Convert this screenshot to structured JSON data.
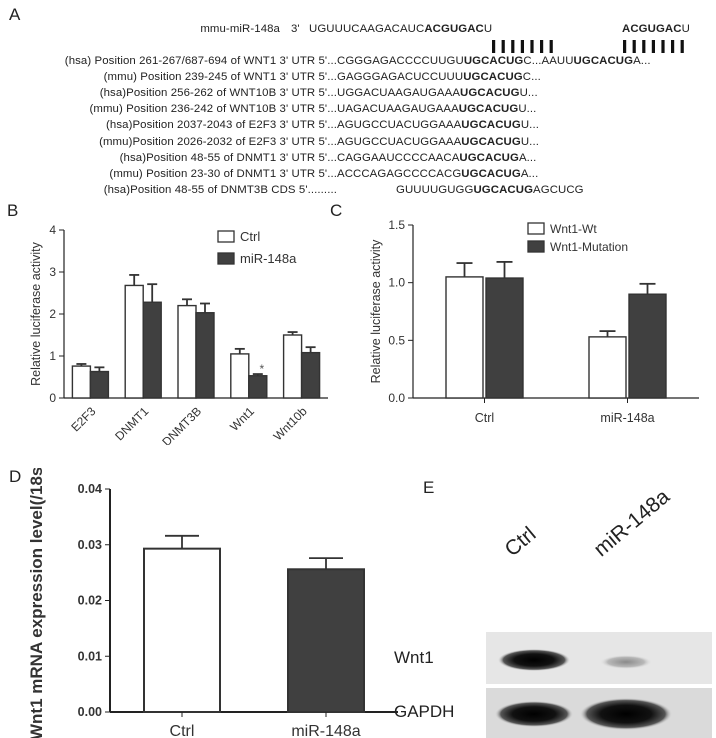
{
  "panel_labels": {
    "a": "A",
    "b": "B",
    "c": "C",
    "d": "D",
    "e": "E"
  },
  "panel_a": {
    "mirna_label": "mmu-miR-148a",
    "mirna_prime": "3'",
    "mirna_plain": "UGUUUCAAGACAUC",
    "mirna_seed": "ACGUGAC",
    "mirna_tail": "U",
    "mirna_seed2": "ACGUGAC",
    "mirna_tail2": "U",
    "rows": [
      {
        "label": "(hsa) Position  261-267/687-694 of WNT1 3' UTR  5'...",
        "pre": "CGGGAGACCCCUUGU",
        "seed": "UGCACUG",
        "post": "C...AAUU",
        "seed2": "UGCACUG",
        "post2": "A..."
      },
      {
        "label": "(mmu) Position 239-245 of WNT1 3' UTR  5'...",
        "pre": "GAGGGAGACUCCUUU",
        "seed": "UGCACUG",
        "post": "C..."
      },
      {
        "label": "(hsa)Position 256-262 of WNT10B 3' UTR  5'...",
        "pre": "UGGACUAAGAUGAAA",
        "seed": "UGCACUG",
        "post": "U..."
      },
      {
        "label": "(mmu) Position 236-242 of WNT10B 3' UTR  5'...",
        "pre": "UAGACUAAGAUGAAA",
        "seed": "UGCACUG",
        "post": "U..."
      },
      {
        "label": "(hsa)Position 2037-2043 of E2F3 3' UTR  5'...",
        "pre": "AGUGCCUACUGGAAA",
        "seed": "UGCACUG",
        "post": "U..."
      },
      {
        "label": "(mmu)Position 2026-2032 of E2F3 3' UTR  5'...",
        "pre": "AGUGCCUACUGGAAA",
        "seed": "UGCACUG",
        "post": "U..."
      },
      {
        "label": "(hsa)Position 48-55 of DNMT1 3' UTR  5'...",
        "pre": "CAGGAAUCCCCAACA",
        "seed": "UGCACUG",
        "post": "A..."
      },
      {
        "label": "(mmu) Position 23-30 of DNMT1 3' UTR  5'...",
        "pre": "ACCCAGAGCCCCACG",
        "seed": "UGCACUG",
        "post": "A..."
      },
      {
        "label": "(hsa)Position 48-55 of DNMT3B CDS     5'.........",
        "pre": "GUUUUGUGG",
        "seed": "UGCACUG",
        "post": "AGCUCG"
      }
    ]
  },
  "chart_data": [
    {
      "id": "B",
      "type": "bar",
      "ylabel": "Relative luciferase activity",
      "ylim": [
        0,
        4
      ],
      "yticks": [
        "0",
        "1",
        "2",
        "3",
        "4"
      ],
      "categories": [
        "E2F3",
        "DNMT1",
        "DNMT3B",
        "Wnt1",
        "Wnt10b"
      ],
      "series": [
        {
          "name": "Ctrl",
          "values": [
            0.76,
            2.68,
            2.2,
            1.05,
            1.5
          ],
          "errors": [
            0.05,
            0.25,
            0.15,
            0.12,
            0.07
          ],
          "color": "#ffffff"
        },
        {
          "name": "miR-148a",
          "values": [
            0.63,
            2.28,
            2.03,
            0.53,
            1.08
          ],
          "errors": [
            0.1,
            0.43,
            0.22,
            0.04,
            0.13
          ],
          "color": "#404040"
        }
      ],
      "annotations": [
        {
          "category": "Wnt1",
          "series": "miR-148a",
          "text": "*"
        }
      ],
      "legend": "top-right"
    },
    {
      "id": "C",
      "type": "bar",
      "ylabel": "Relative luciferase activity",
      "ylim": [
        0,
        1.5
      ],
      "yticks": [
        "0.0",
        "0.5",
        "1.0",
        "1.5"
      ],
      "categories": [
        "Ctrl",
        "miR-148a"
      ],
      "series": [
        {
          "name": "Wnt1-Wt",
          "values": [
            1.05,
            0.53
          ],
          "errors": [
            0.12,
            0.05
          ],
          "color": "#ffffff"
        },
        {
          "name": "Wnt1-Mutation",
          "values": [
            1.04,
            0.9
          ],
          "errors": [
            0.14,
            0.09
          ],
          "color": "#404040"
        }
      ],
      "legend": "top-right"
    },
    {
      "id": "D",
      "type": "bar",
      "ylabel": "Wnt1 mRNA expression level(/18s)",
      "ylim": [
        0,
        0.04
      ],
      "yticks": [
        "0.00",
        "0.01",
        "0.02",
        "0.03",
        "0.04"
      ],
      "categories": [
        "Ctrl",
        "miR-148a"
      ],
      "values": [
        0.0293,
        0.0256
      ],
      "errors": [
        0.0023,
        0.002
      ],
      "colors": [
        "#ffffff",
        "#404040"
      ]
    }
  ],
  "panel_e": {
    "lane_labels": [
      "Ctrl",
      "miR-148a"
    ],
    "row_labels": [
      "Wnt1",
      "GAPDH"
    ]
  }
}
